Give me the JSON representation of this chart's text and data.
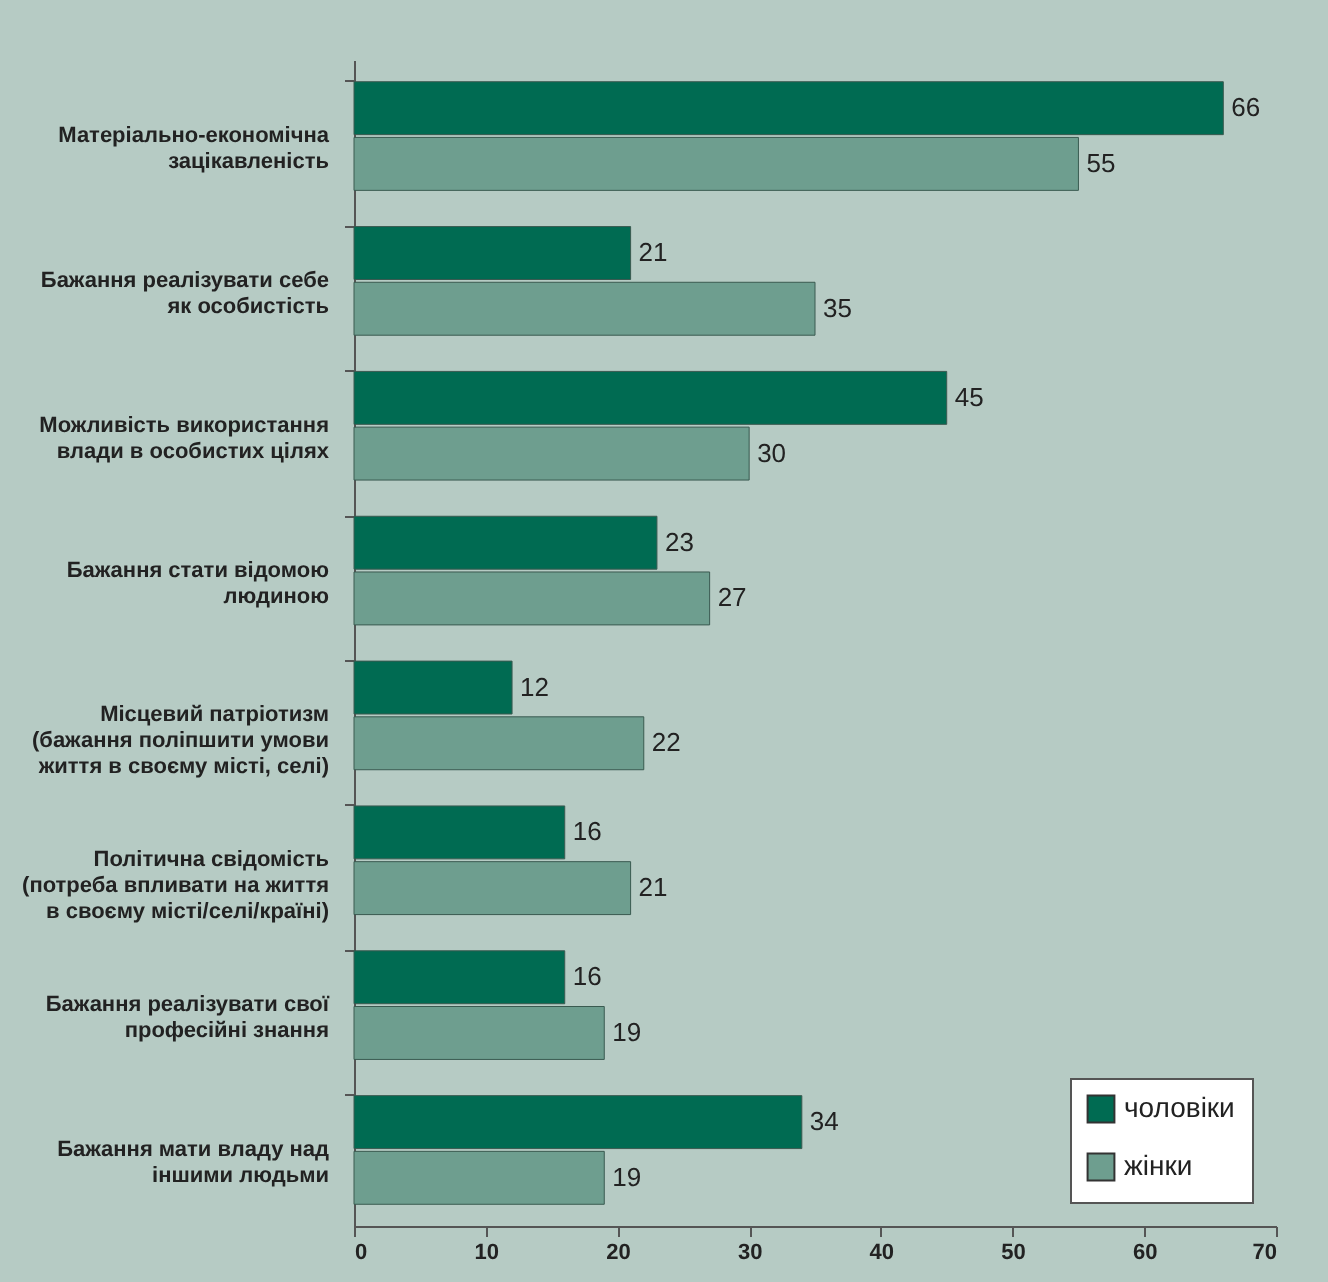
{
  "chart_data": {
    "type": "bar",
    "orientation": "horizontal",
    "categories": [
      "Матеріально-економічна\nзацікавленість",
      "Бажання реалізувати себе\nяк особистість",
      "Можливість використання\nвлади в особистих цілях",
      "Бажання стати відомою\nлюдиною",
      "Місцевий патріотизм\n(бажання поліпшити умови\nжиття в своєму місті, селі)",
      "Політична свідомість\n(потреба впливати на життя\nв своєму місті/селі/країні)",
      "Бажання реалізувати свої\nпрофесійні знання",
      "Бажання мати владу над\nіншими людьми"
    ],
    "series": [
      {
        "name": "чоловіки",
        "color": "#006b52",
        "values": [
          66,
          21,
          45,
          23,
          12,
          16,
          16,
          34
        ]
      },
      {
        "name": "жінки",
        "color": "#6e9e8f",
        "values": [
          55,
          35,
          30,
          27,
          22,
          21,
          19,
          19
        ]
      }
    ],
    "xlim": [
      0,
      70
    ],
    "xticks": [
      0,
      10,
      20,
      30,
      40,
      50,
      60,
      70
    ],
    "data_labels": true,
    "grid": false,
    "legend": "bottom right"
  }
}
